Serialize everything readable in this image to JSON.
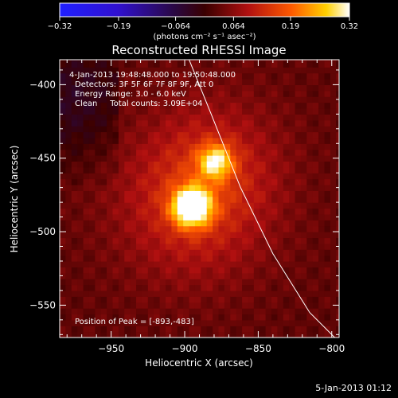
{
  "chart_data": {
    "type": "heatmap",
    "title": "Reconstructed RHESSI Image",
    "xlabel": "Heliocentric X (arcsec)",
    "ylabel": "Heliocentric Y (arcsec)",
    "xlim": [
      -985,
      -795
    ],
    "ylim": [
      -572,
      -383
    ],
    "x_ticks": [
      -950,
      -900,
      -850,
      -800
    ],
    "x_tick_labels": [
      "−950",
      "−900",
      "−850",
      "−800"
    ],
    "y_ticks": [
      -400,
      -450,
      -500,
      -550
    ],
    "y_tick_labels": [
      "−400",
      "−450",
      "−500",
      "−550"
    ],
    "colorbar": {
      "min": -0.32,
      "max": 0.32,
      "ticks": [
        -0.32,
        -0.19,
        -0.064,
        0.064,
        0.19,
        0.32
      ],
      "tick_labels": [
        "−0.32",
        "−0.19",
        "−0.064",
        "0.064",
        "0.19",
        "0.32"
      ],
      "units_label": "(photons cm⁻² s⁻¹ asec⁻²)",
      "colormap": "purple-red-yellow-white"
    },
    "annotations": [
      "4-Jan-2013 19:48:48.000 to 19:50:48.000",
      "Detectors: 3F 5F 6F 7F 8F 9F, Att 0",
      "Energy Range: 3.0 - 6.0 keV",
      "Clean     Total counts: 3.09E+04"
    ],
    "peak_label": "Position of Peak = [-893,-483]",
    "sources": [
      {
        "x": -895,
        "y": -483,
        "peak": 0.32,
        "sigma": 9
      },
      {
        "x": -879,
        "y": -452,
        "peak": 0.2,
        "sigma": 8
      }
    ],
    "limb_curve": [
      {
        "x": -897,
        "y": -383
      },
      {
        "x": -882,
        "y": -420
      },
      {
        "x": -862,
        "y": -470
      },
      {
        "x": -840,
        "y": -515
      },
      {
        "x": -815,
        "y": -555
      },
      {
        "x": -798,
        "y": -572
      }
    ]
  },
  "footer": {
    "date": "5-Jan-2013 01:12"
  },
  "colors": {
    "background": "#000000",
    "foreground": "#ffffff",
    "limb_line": "#ffffff"
  }
}
